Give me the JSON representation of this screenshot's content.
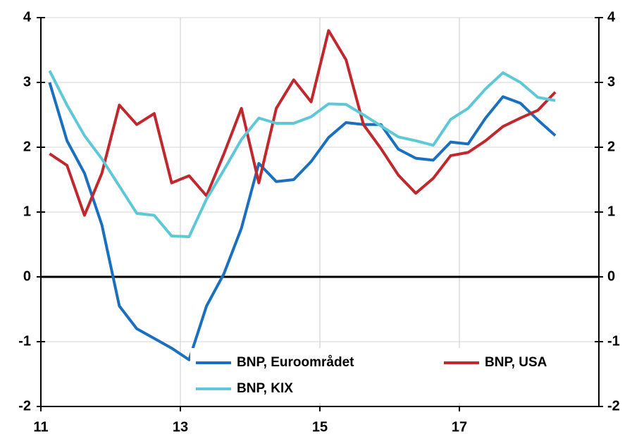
{
  "chart_data": {
    "type": "line",
    "x": [
      2011.125,
      2011.375,
      2011.625,
      2011.875,
      2012.125,
      2012.375,
      2012.625,
      2012.875,
      2013.125,
      2013.375,
      2013.625,
      2013.875,
      2014.125,
      2014.375,
      2014.625,
      2014.875,
      2015.125,
      2015.375,
      2015.625,
      2015.875,
      2016.125,
      2016.375,
      2016.625,
      2016.875,
      2017.125,
      2017.375,
      2017.625,
      2017.875,
      2018.125,
      2018.375
    ],
    "series": [
      {
        "name": "BNP, Euroområdet",
        "color": "#1a6fbf",
        "values": [
          3.0,
          2.1,
          1.6,
          0.8,
          -0.45,
          -0.8,
          -0.95,
          -1.1,
          -1.28,
          -0.45,
          0.05,
          0.75,
          1.75,
          1.47,
          1.5,
          1.78,
          2.15,
          2.38,
          2.35,
          2.35,
          1.97,
          1.83,
          1.8,
          2.08,
          2.05,
          2.45,
          2.78,
          2.68,
          2.42,
          2.18
        ]
      },
      {
        "name": "BNP, USA",
        "color": "#c0282d",
        "values": [
          1.9,
          1.72,
          0.95,
          1.6,
          2.65,
          2.35,
          2.52,
          1.45,
          1.56,
          1.25,
          1.9,
          2.6,
          1.45,
          2.6,
          3.04,
          2.7,
          3.8,
          3.35,
          2.35,
          1.98,
          1.57,
          1.29,
          1.52,
          1.87,
          1.92,
          2.1,
          2.32,
          2.45,
          2.57,
          2.85
        ]
      },
      {
        "name": "BNP, KIX",
        "color": "#5ec8d6",
        "values": [
          3.18,
          2.65,
          2.18,
          1.82,
          1.4,
          0.98,
          0.95,
          0.63,
          0.62,
          1.2,
          1.65,
          2.12,
          2.45,
          2.37,
          2.37,
          2.47,
          2.67,
          2.66,
          2.5,
          2.33,
          2.16,
          2.1,
          2.03,
          2.43,
          2.6,
          2.9,
          3.15,
          3.0,
          2.77,
          2.72
        ]
      }
    ],
    "xlim": [
      2011,
      2019
    ],
    "xticks": [
      {
        "value": 2011,
        "label": "11"
      },
      {
        "value": 2013,
        "label": "13"
      },
      {
        "value": 2015,
        "label": "15"
      },
      {
        "value": 2017,
        "label": "17"
      }
    ],
    "ylim": [
      -2,
      4
    ],
    "yticks": [
      -2,
      -1,
      0,
      1,
      2,
      3,
      4
    ],
    "y2lim": [
      -2,
      4
    ],
    "y2ticks": [
      -2,
      -1,
      0,
      1,
      2,
      3,
      4
    ],
    "grid": true
  }
}
